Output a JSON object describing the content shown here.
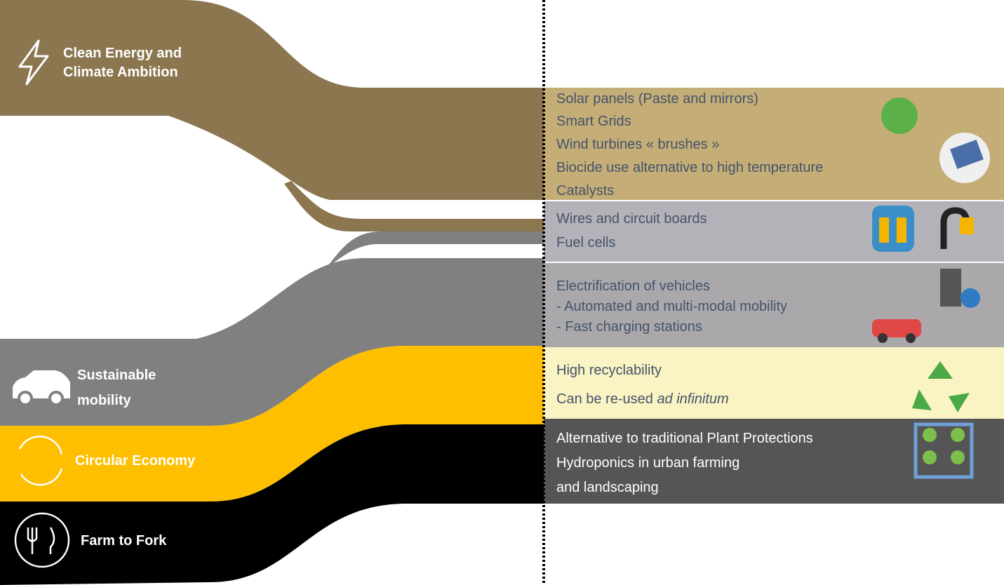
{
  "sources": [
    {
      "lines": [
        "Clean Energy and",
        "Climate Ambition"
      ]
    },
    {
      "lines": [
        "Sustainable",
        "mobility"
      ]
    },
    {
      "lines": [
        "Circular Economy"
      ]
    },
    {
      "lines": [
        "Farm to Fork"
      ]
    }
  ],
  "applications": [
    {
      "items": [
        "Solar panels (Paste and mirrors)",
        "Smart Grids",
        "Wind turbines « brushes »",
        "Biocide use alternative to high temperature",
        "Catalysts"
      ]
    },
    {
      "items": [
        "Wires and circuit boards",
        "Fuel cells"
      ]
    },
    {
      "items": [
        "Electrification of vehicles",
        "- Automated and multi-modal mobility",
        "- Fast charging stations"
      ]
    },
    {
      "items": [
        "High recyclability",
        {
          "text": "Can be re-used",
          "emphasis": "ad infinitum"
        }
      ]
    },
    {
      "items": [
        "Alternative to traditional Plant Protections",
        "Hydroponics in urban farming",
        "and landscaping"
      ]
    }
  ]
}
